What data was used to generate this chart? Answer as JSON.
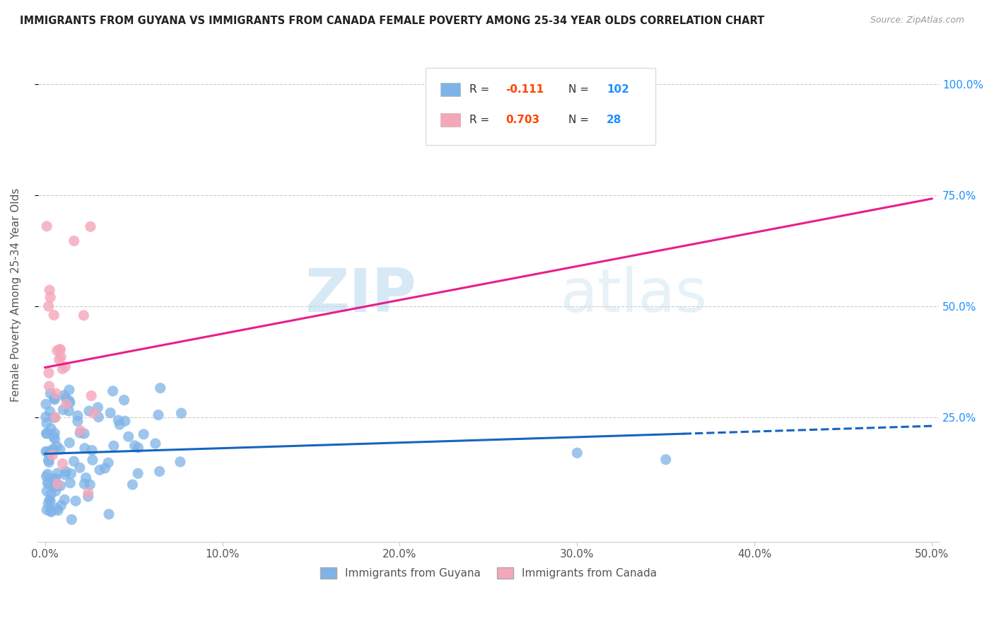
{
  "title": "IMMIGRANTS FROM GUYANA VS IMMIGRANTS FROM CANADA FEMALE POVERTY AMONG 25-34 YEAR OLDS CORRELATION CHART",
  "source": "Source: ZipAtlas.com",
  "ylabel": "Female Poverty Among 25-34 Year Olds",
  "xlim": [
    0.0,
    0.5
  ],
  "ylim": [
    0.0,
    1.05
  ],
  "xtick_labels": [
    "0.0%",
    "10.0%",
    "20.0%",
    "30.0%",
    "40.0%",
    "50.0%"
  ],
  "xtick_vals": [
    0.0,
    0.1,
    0.2,
    0.3,
    0.4,
    0.5
  ],
  "ytick_labels": [
    "25.0%",
    "50.0%",
    "75.0%",
    "100.0%"
  ],
  "ytick_vals": [
    0.25,
    0.5,
    0.75,
    1.0
  ],
  "color_guyana": "#7EB3E8",
  "color_canada": "#F4A7B9",
  "line_color_guyana": "#1565C0",
  "line_color_canada": "#E91E8C",
  "R_guyana": -0.111,
  "N_guyana": 102,
  "R_canada": 0.703,
  "N_canada": 28,
  "legend_R_color": "#FF4500",
  "legend_N_color": "#1E90FF",
  "watermark_zip": "ZIP",
  "watermark_atlas": "atlas",
  "background_color": "#ffffff",
  "marker_size": 120
}
